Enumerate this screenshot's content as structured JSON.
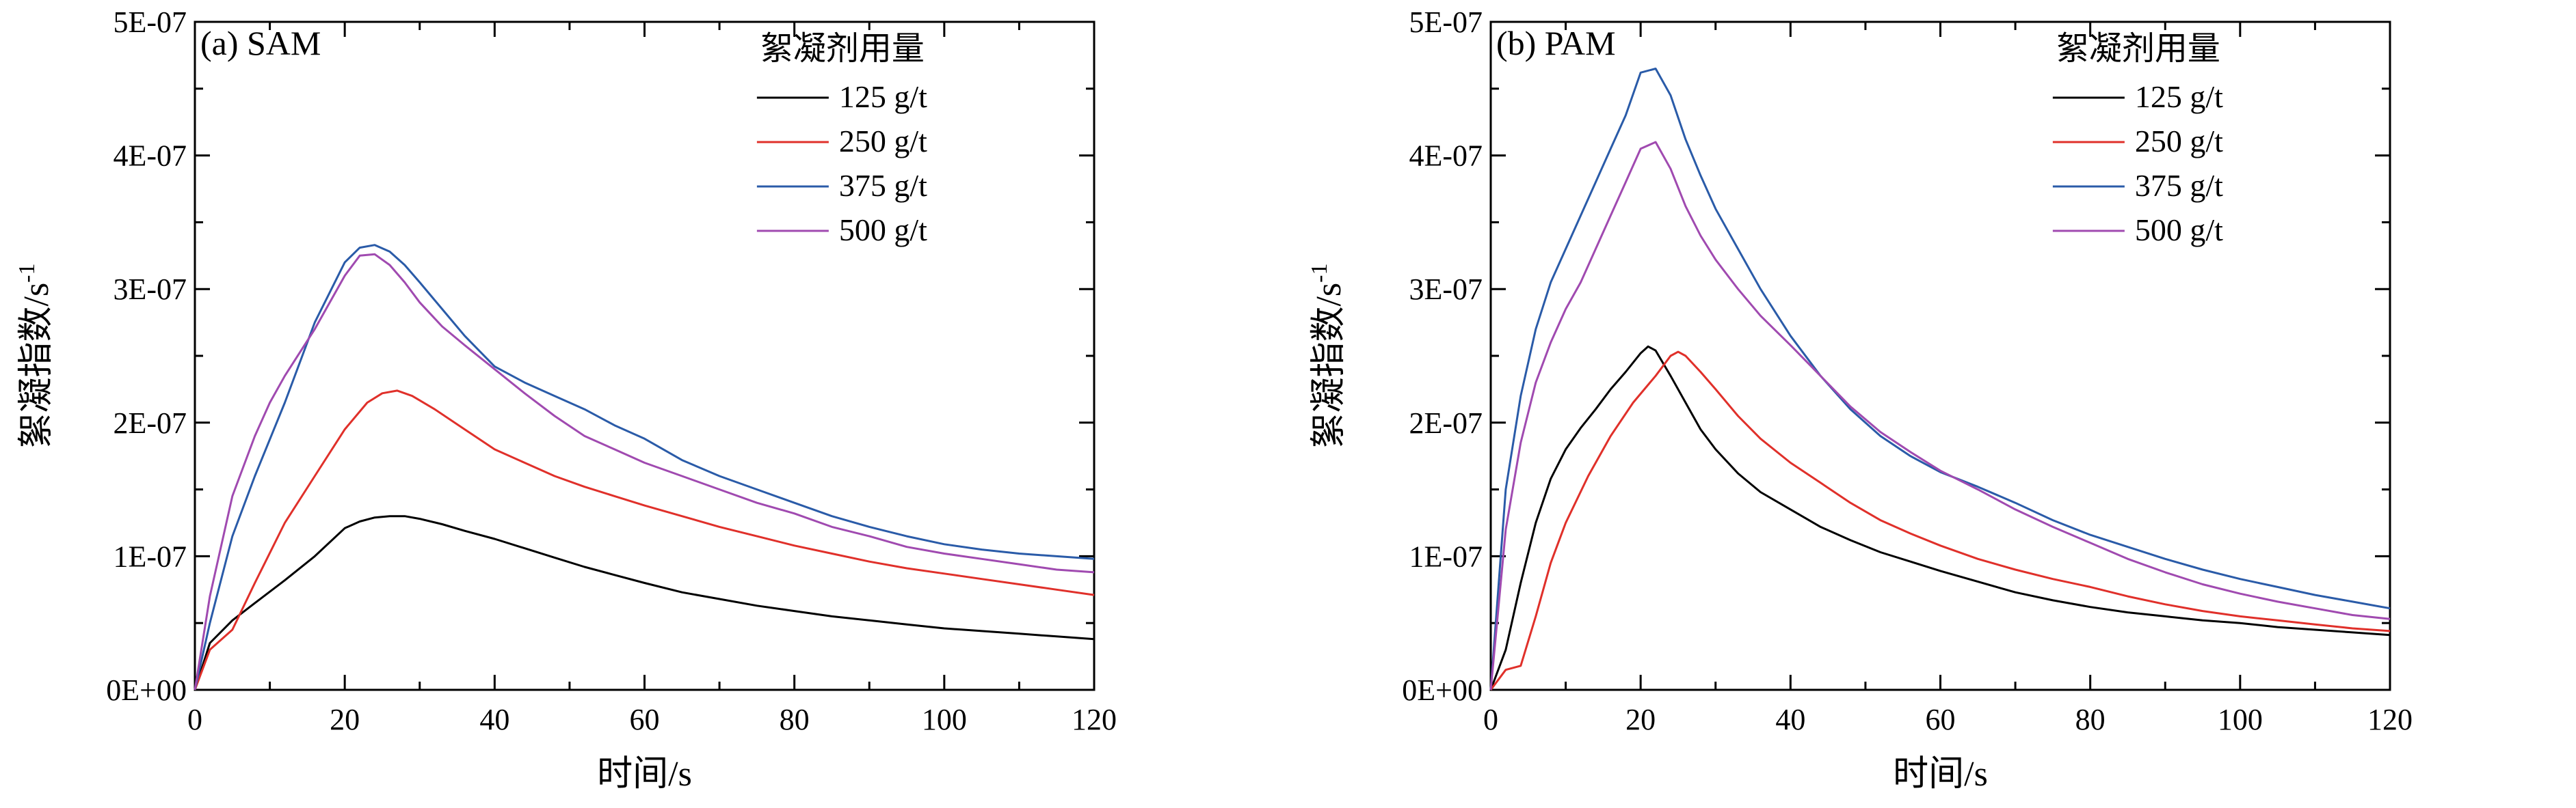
{
  "chart_data": [
    {
      "type": "line",
      "panel_label": "(a) SAM",
      "xlabel": "时间/s",
      "ylabel": "絮凝指数/s",
      "ylabel_sup": "-1",
      "xlim": [
        0,
        120
      ],
      "ylim": [
        0,
        5e-07
      ],
      "xticks": [
        "0",
        "20",
        "40",
        "60",
        "80",
        "100",
        "120"
      ],
      "yticks": [
        "0E+00",
        "1E-07",
        "2E-07",
        "3E-07",
        "4E-07",
        "5E-07"
      ],
      "legend": {
        "title": "絮凝剂用量",
        "position": "top-right"
      },
      "grid": false,
      "series": [
        {
          "name": "125 g/t",
          "color": "#000000",
          "x": [
            0,
            2,
            5,
            8,
            12,
            16,
            20,
            22,
            24,
            26,
            28,
            30,
            33,
            36,
            40,
            44,
            48,
            52,
            56,
            60,
            65,
            70,
            75,
            80,
            85,
            90,
            95,
            100,
            105,
            110,
            115,
            120
          ],
          "y": [
            0,
            3.5e-08,
            5.2e-08,
            6.5e-08,
            8.2e-08,
            1e-07,
            1.21e-07,
            1.26e-07,
            1.29e-07,
            1.3e-07,
            1.3e-07,
            1.28e-07,
            1.24e-07,
            1.19e-07,
            1.13e-07,
            1.06e-07,
            9.9e-08,
            9.2e-08,
            8.6e-08,
            8e-08,
            7.3e-08,
            6.8e-08,
            6.3e-08,
            5.9e-08,
            5.5e-08,
            5.2e-08,
            4.9e-08,
            4.6e-08,
            4.4e-08,
            4.2e-08,
            4e-08,
            3.8e-08
          ]
        },
        {
          "name": "250 g/t",
          "color": "#e0302a",
          "x": [
            0,
            2,
            5,
            8,
            12,
            16,
            20,
            23,
            25,
            27,
            29,
            32,
            36,
            40,
            44,
            48,
            52,
            56,
            60,
            65,
            70,
            75,
            80,
            85,
            90,
            95,
            100,
            105,
            110,
            115,
            120
          ],
          "y": [
            0,
            3e-08,
            4.5e-08,
            8e-08,
            1.25e-07,
            1.6e-07,
            1.95e-07,
            2.15e-07,
            2.22e-07,
            2.24e-07,
            2.2e-07,
            2.1e-07,
            1.95e-07,
            1.8e-07,
            1.7e-07,
            1.6e-07,
            1.52e-07,
            1.45e-07,
            1.38e-07,
            1.3e-07,
            1.22e-07,
            1.15e-07,
            1.08e-07,
            1.02e-07,
            9.6e-08,
            9.1e-08,
            8.7e-08,
            8.3e-08,
            7.9e-08,
            7.5e-08,
            7.1e-08
          ]
        },
        {
          "name": "375 g/t",
          "color": "#2a5ba8",
          "x": [
            0,
            2,
            5,
            8,
            12,
            16,
            20,
            22,
            24,
            26,
            28,
            30,
            33,
            36,
            40,
            44,
            48,
            52,
            56,
            60,
            65,
            70,
            75,
            80,
            85,
            90,
            95,
            100,
            105,
            110,
            115,
            120
          ],
          "y": [
            0,
            5e-08,
            1.15e-07,
            1.6e-07,
            2.15e-07,
            2.75e-07,
            3.2e-07,
            3.31e-07,
            3.33e-07,
            3.28e-07,
            3.18e-07,
            3.05e-07,
            2.85e-07,
            2.65e-07,
            2.42e-07,
            2.3e-07,
            2.2e-07,
            2.1e-07,
            1.98e-07,
            1.88e-07,
            1.72e-07,
            1.6e-07,
            1.5e-07,
            1.4e-07,
            1.3e-07,
            1.22e-07,
            1.15e-07,
            1.09e-07,
            1.05e-07,
            1.02e-07,
            1e-07,
            9.8e-08
          ]
        },
        {
          "name": "500 g/t",
          "color": "#a04ab0",
          "x": [
            0,
            2,
            5,
            8,
            10,
            12,
            16,
            20,
            22,
            24,
            26,
            28,
            30,
            33,
            36,
            40,
            44,
            48,
            52,
            56,
            60,
            65,
            70,
            75,
            80,
            85,
            90,
            95,
            100,
            105,
            110,
            115,
            120
          ],
          "y": [
            0,
            7e-08,
            1.45e-07,
            1.9e-07,
            2.15e-07,
            2.35e-07,
            2.7e-07,
            3.1e-07,
            3.25e-07,
            3.26e-07,
            3.18e-07,
            3.05e-07,
            2.9e-07,
            2.72e-07,
            2.58e-07,
            2.4e-07,
            2.22e-07,
            2.05e-07,
            1.9e-07,
            1.8e-07,
            1.7e-07,
            1.6e-07,
            1.5e-07,
            1.4e-07,
            1.32e-07,
            1.22e-07,
            1.15e-07,
            1.07e-07,
            1.02e-07,
            9.8e-08,
            9.4e-08,
            9e-08,
            8.8e-08
          ]
        }
      ]
    },
    {
      "type": "line",
      "panel_label": "(b) PAM",
      "xlabel": "时间/s",
      "ylabel": "絮凝指数/s",
      "ylabel_sup": "-1",
      "xlim": [
        0,
        120
      ],
      "ylim": [
        0,
        5e-07
      ],
      "xticks": [
        "0",
        "20",
        "40",
        "60",
        "80",
        "100",
        "120"
      ],
      "yticks": [
        "0E+00",
        "1E-07",
        "2E-07",
        "3E-07",
        "4E-07",
        "5E-07"
      ],
      "legend": {
        "title": "絮凝剂用量",
        "position": "top-right"
      },
      "grid": false,
      "series": [
        {
          "name": "125 g/t",
          "color": "#000000",
          "x": [
            0,
            2,
            4,
            6,
            8,
            10,
            12,
            14,
            16,
            18,
            20,
            21,
            22,
            24,
            26,
            28,
            30,
            33,
            36,
            40,
            44,
            48,
            52,
            56,
            60,
            65,
            70,
            75,
            80,
            85,
            90,
            95,
            100,
            105,
            110,
            115,
            120
          ],
          "y": [
            0,
            3e-08,
            8e-08,
            1.25e-07,
            1.58e-07,
            1.8e-07,
            1.96e-07,
            2.1e-07,
            2.25e-07,
            2.38e-07,
            2.52e-07,
            2.57e-07,
            2.54e-07,
            2.35e-07,
            2.15e-07,
            1.95e-07,
            1.8e-07,
            1.62e-07,
            1.48e-07,
            1.35e-07,
            1.22e-07,
            1.12e-07,
            1.03e-07,
            9.6e-08,
            8.9e-08,
            8.1e-08,
            7.3e-08,
            6.7e-08,
            6.2e-08,
            5.8e-08,
            5.5e-08,
            5.2e-08,
            5e-08,
            4.7e-08,
            4.5e-08,
            4.3e-08,
            4.1e-08
          ]
        },
        {
          "name": "250 g/t",
          "color": "#e0302a",
          "x": [
            0,
            2,
            4,
            6,
            8,
            10,
            13,
            16,
            19,
            22,
            24,
            25,
            26,
            28,
            30,
            33,
            36,
            40,
            44,
            48,
            52,
            56,
            60,
            65,
            70,
            75,
            80,
            85,
            90,
            95,
            100,
            105,
            110,
            115,
            120
          ],
          "y": [
            0,
            1.5e-08,
            1.8e-08,
            5.5e-08,
            9.5e-08,
            1.25e-07,
            1.6e-07,
            1.9e-07,
            2.15e-07,
            2.35e-07,
            2.5e-07,
            2.53e-07,
            2.5e-07,
            2.38e-07,
            2.25e-07,
            2.05e-07,
            1.88e-07,
            1.7e-07,
            1.55e-07,
            1.4e-07,
            1.27e-07,
            1.17e-07,
            1.08e-07,
            9.8e-08,
            9e-08,
            8.3e-08,
            7.7e-08,
            7e-08,
            6.4e-08,
            5.9e-08,
            5.5e-08,
            5.2e-08,
            4.9e-08,
            4.6e-08,
            4.4e-08
          ]
        },
        {
          "name": "375 g/t",
          "color": "#2a5ba8",
          "x": [
            0,
            2,
            4,
            6,
            8,
            10,
            12,
            14,
            16,
            18,
            20,
            22,
            24,
            26,
            28,
            30,
            33,
            36,
            40,
            44,
            48,
            52,
            56,
            60,
            65,
            70,
            75,
            80,
            85,
            90,
            95,
            100,
            105,
            110,
            115,
            120
          ],
          "y": [
            0,
            1.5e-07,
            2.2e-07,
            2.7e-07,
            3.05e-07,
            3.3e-07,
            3.55e-07,
            3.8e-07,
            4.05e-07,
            4.3e-07,
            4.62e-07,
            4.65e-07,
            4.45e-07,
            4.12e-07,
            3.85e-07,
            3.6e-07,
            3.3e-07,
            3e-07,
            2.65e-07,
            2.35e-07,
            2.1e-07,
            1.9e-07,
            1.75e-07,
            1.63e-07,
            1.52e-07,
            1.4e-07,
            1.27e-07,
            1.16e-07,
            1.07e-07,
            9.8e-08,
            9e-08,
            8.3e-08,
            7.7e-08,
            7.1e-08,
            6.6e-08,
            6.1e-08
          ]
        },
        {
          "name": "500 g/t",
          "color": "#a04ab0",
          "x": [
            0,
            2,
            4,
            6,
            8,
            10,
            12,
            14,
            16,
            18,
            20,
            22,
            24,
            26,
            28,
            30,
            33,
            36,
            40,
            44,
            48,
            52,
            56,
            60,
            65,
            70,
            75,
            80,
            85,
            90,
            95,
            100,
            105,
            110,
            115,
            120
          ],
          "y": [
            0,
            1.2e-07,
            1.85e-07,
            2.3e-07,
            2.6e-07,
            2.85e-07,
            3.05e-07,
            3.3e-07,
            3.55e-07,
            3.8e-07,
            4.05e-07,
            4.1e-07,
            3.9e-07,
            3.62e-07,
            3.4e-07,
            3.22e-07,
            3e-07,
            2.8e-07,
            2.58e-07,
            2.35e-07,
            2.12e-07,
            1.93e-07,
            1.78e-07,
            1.64e-07,
            1.5e-07,
            1.35e-07,
            1.22e-07,
            1.1e-07,
            9.8e-08,
            8.8e-08,
            7.9e-08,
            7.2e-08,
            6.6e-08,
            6.1e-08,
            5.6e-08,
            5.3e-08
          ]
        }
      ]
    }
  ]
}
